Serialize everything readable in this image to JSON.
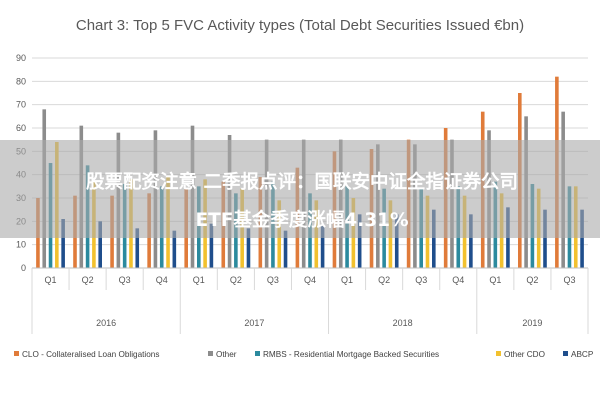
{
  "chart_data": {
    "type": "bar",
    "title": "Chart 3: Top 5 FVC Activity types (Total Debt Securities Issued €bn)",
    "quarters": [
      "Q1",
      "Q2",
      "Q3",
      "Q4",
      "Q1",
      "Q2",
      "Q3",
      "Q4",
      "Q1",
      "Q2",
      "Q3",
      "Q4",
      "Q1",
      "Q2",
      "Q3"
    ],
    "years": [
      {
        "label": "2016",
        "quarters": 4
      },
      {
        "label": "2017",
        "quarters": 4
      },
      {
        "label": "2018",
        "quarters": 4
      },
      {
        "label": "2019",
        "quarters": 3
      }
    ],
    "ylim": [
      0,
      90
    ],
    "yticks": [
      0,
      10,
      20,
      30,
      40,
      50,
      60,
      70,
      80,
      90
    ],
    "grid": true,
    "legend_position": "bottom",
    "series": [
      {
        "name": "CLO - Collateralised Loan Obligations",
        "color": "#e07b3a",
        "values": [
          30,
          31,
          31,
          32,
          34,
          37,
          39,
          43,
          50,
          51,
          55,
          60,
          67,
          75,
          82
        ]
      },
      {
        "name": "Other",
        "color": "#8c8c8c",
        "values": [
          68,
          61,
          58,
          59,
          61,
          57,
          55,
          55,
          55,
          53,
          53,
          55,
          59,
          65,
          67
        ]
      },
      {
        "name": "RMBS - Residential Mortgage Backed Securities",
        "color": "#2b8a9e",
        "values": [
          45,
          44,
          36,
          35,
          35,
          32,
          37,
          32,
          35,
          34,
          34,
          35,
          37,
          36,
          35
        ]
      },
      {
        "name": "Other CDO",
        "color": "#f2c12e",
        "values": [
          54,
          37,
          38,
          39,
          38,
          34,
          29,
          29,
          30,
          29,
          31,
          31,
          32,
          34,
          35
        ]
      },
      {
        "name": "ABCP",
        "color": "#1f4e8c",
        "values": [
          21,
          20,
          17,
          16,
          19,
          17,
          16,
          18,
          23,
          23,
          25,
          23,
          26,
          25,
          25
        ]
      }
    ]
  },
  "banner": {
    "line1": "股票配资注意 二季报点评：国联安中证全指证券公司",
    "line2": "ETF基金季度涨幅4.31%"
  }
}
